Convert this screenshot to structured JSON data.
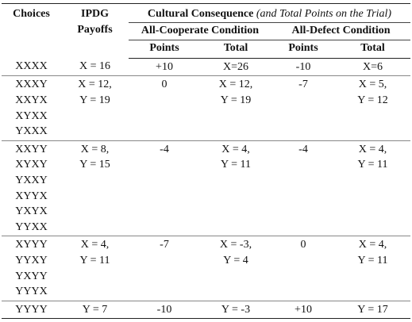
{
  "header": {
    "choices": "Choices",
    "payoffs": [
      "IPDG",
      "Payoffs"
    ],
    "consequence": "Cultural Consequence",
    "consequence_note": "(and Total Points on the Trial)",
    "cooperate": "All-Cooperate Condition",
    "defect": "All-Defect Condition",
    "points": "Points",
    "total": "Total"
  },
  "groups": [
    {
      "choices": [
        "XXXX"
      ],
      "payoff": [
        "X = 16"
      ],
      "coop_points": "+10",
      "coop_total": [
        "X=26"
      ],
      "defect_points": "-10",
      "defect_total": [
        "X=6"
      ]
    },
    {
      "choices": [
        "XXXY",
        "XXYX",
        "XYXX",
        "YXXX"
      ],
      "payoff": [
        "X = 12,",
        "Y = 19"
      ],
      "coop_points": "0",
      "coop_total": [
        "X = 12,",
        "Y = 19"
      ],
      "defect_points": "-7",
      "defect_total": [
        "X = 5,",
        "Y = 12"
      ]
    },
    {
      "choices": [
        "XXYY",
        "XYXY",
        "YXXY",
        "XYYX",
        "YXYX",
        "YYXX"
      ],
      "payoff": [
        "X = 8,",
        "Y = 15"
      ],
      "coop_points": "-4",
      "coop_total": [
        "X = 4,",
        "Y = 11"
      ],
      "defect_points": "-4",
      "defect_total": [
        "X = 4,",
        "Y = 11"
      ]
    },
    {
      "choices": [
        "XYYY",
        "YYXY",
        "YXYY",
        "YYYX"
      ],
      "payoff": [
        "X = 4,",
        "Y = 11"
      ],
      "coop_points": "-7",
      "coop_total": [
        "X = -3,",
        "Y = 4"
      ],
      "defect_points": "0",
      "defect_total": [
        "X = 4,",
        "Y = 11"
      ]
    },
    {
      "choices": [
        "YYYY"
      ],
      "payoff": [
        "Y = 7"
      ],
      "coop_points": "-10",
      "coop_total": [
        "Y = -3"
      ],
      "defect_points": "+10",
      "defect_total": [
        "Y = 17"
      ]
    }
  ]
}
